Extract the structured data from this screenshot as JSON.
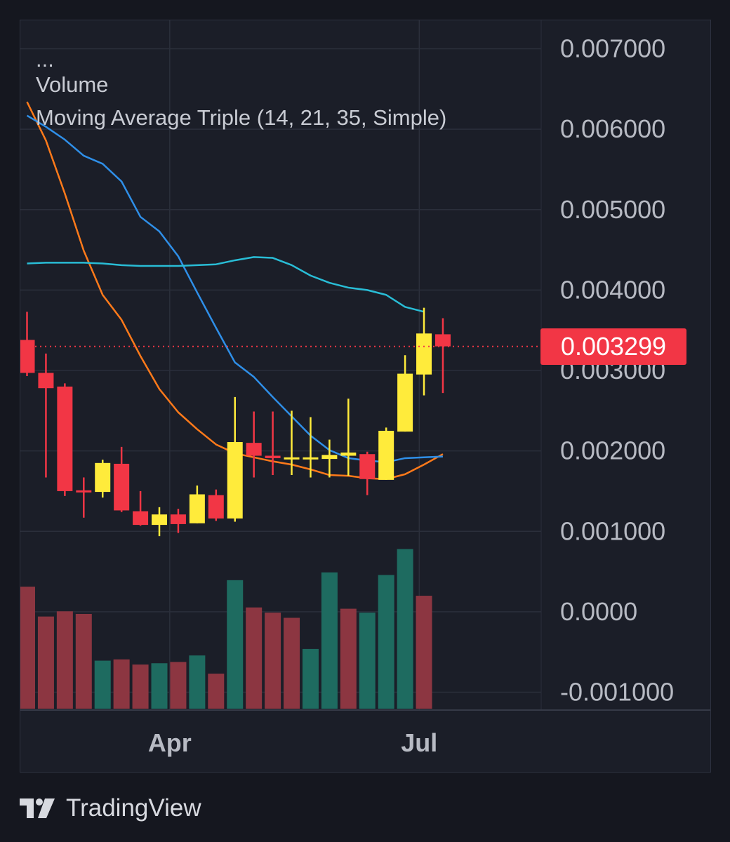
{
  "legend": {
    "collapsed": "...",
    "volume": "Volume",
    "ma_triple": "Moving Average Triple (14, 21, 35, Simple)"
  },
  "price_label": "0.003299",
  "brand": {
    "name": "TradingView",
    "logo_icon": "tradingview-logo-icon"
  },
  "colors": {
    "up": "#ffeb3b",
    "down": "#f23645",
    "vol_up": "#1e6b60",
    "vol_down": "#8c3641",
    "ma_fast": "#ff7a1a",
    "ma_mid": "#2f8fe8",
    "ma_slow": "#29bdd6",
    "grid": "#2b2f3b",
    "axis_text": "#b7bac3",
    "last_line": "#f23645"
  },
  "chart_data": {
    "type": "candlestick",
    "y_axis": {
      "ticks": [
        "0.007000",
        "0.006000",
        "0.005000",
        "0.004000",
        "0.003000",
        "0.002000",
        "0.001000",
        "0.0000",
        "-0.001000"
      ],
      "tick_values": [
        0.007,
        0.006,
        0.005,
        0.004,
        0.003,
        0.002,
        0.001,
        0.0,
        -0.001
      ],
      "range": [
        -0.00125,
        0.00735
      ]
    },
    "x_axis": {
      "labels": [
        {
          "text": "Apr",
          "index": 7.55
        },
        {
          "text": "Jul",
          "index": 20.75
        }
      ]
    },
    "last_price": 0.003299,
    "candles": [
      {
        "o": 0.00338,
        "h": 0.00373,
        "l": 0.00293,
        "c": 0.00297
      },
      {
        "o": 0.00297,
        "h": 0.00321,
        "l": 0.00167,
        "c": 0.00278
      },
      {
        "o": 0.0028,
        "h": 0.00284,
        "l": 0.00144,
        "c": 0.0015
      },
      {
        "o": 0.00151,
        "h": 0.00167,
        "l": 0.00117,
        "c": 0.0015
      },
      {
        "o": 0.00149,
        "h": 0.00189,
        "l": 0.00142,
        "c": 0.00185
      },
      {
        "o": 0.00184,
        "h": 0.00205,
        "l": 0.00124,
        "c": 0.00126
      },
      {
        "o": 0.00125,
        "h": 0.0015,
        "l": 0.00107,
        "c": 0.00108
      },
      {
        "o": 0.00108,
        "h": 0.0013,
        "l": 0.00094,
        "c": 0.00121
      },
      {
        "o": 0.00121,
        "h": 0.00128,
        "l": 0.00098,
        "c": 0.00109
      },
      {
        "o": 0.0011,
        "h": 0.00157,
        "l": 0.0011,
        "c": 0.00146
      },
      {
        "o": 0.00145,
        "h": 0.00152,
        "l": 0.00113,
        "c": 0.00116
      },
      {
        "o": 0.00116,
        "h": 0.00267,
        "l": 0.00112,
        "c": 0.00211
      },
      {
        "o": 0.0021,
        "h": 0.00249,
        "l": 0.00167,
        "c": 0.00194
      },
      {
        "o": 0.00194,
        "h": 0.00249,
        "l": 0.0017,
        "c": 0.00191
      },
      {
        "o": 0.00191,
        "h": 0.0025,
        "l": 0.0017,
        "c": 0.00192
      },
      {
        "o": 0.0019,
        "h": 0.00242,
        "l": 0.00167,
        "c": 0.00192
      },
      {
        "o": 0.0019,
        "h": 0.00214,
        "l": 0.00167,
        "c": 0.00195
      },
      {
        "o": 0.00194,
        "h": 0.00265,
        "l": 0.00169,
        "c": 0.00198
      },
      {
        "o": 0.00196,
        "h": 0.00199,
        "l": 0.00145,
        "c": 0.00165
      },
      {
        "o": 0.00164,
        "h": 0.00229,
        "l": 0.00164,
        "c": 0.00225
      },
      {
        "o": 0.00224,
        "h": 0.00319,
        "l": 0.00224,
        "c": 0.00296
      },
      {
        "o": 0.00295,
        "h": 0.00378,
        "l": 0.00269,
        "c": 0.00346
      },
      {
        "o": 0.00345,
        "h": 0.00365,
        "l": 0.00272,
        "c": 0.0033
      }
    ],
    "volume_ratios": [
      0.94,
      0.71,
      0.75,
      0.73,
      0.37,
      0.38,
      0.34,
      0.35,
      0.36,
      0.41,
      0.27,
      0.99,
      0.78,
      0.74,
      0.7,
      0.46,
      1.05,
      0.77,
      0.74,
      1.03,
      1.23,
      0.87
    ],
    "volume_up": [
      false,
      false,
      false,
      false,
      true,
      false,
      false,
      true,
      false,
      true,
      false,
      true,
      false,
      false,
      false,
      true,
      true,
      false,
      true,
      true,
      true,
      false
    ],
    "volume_start_index": 0,
    "moving_averages": [
      {
        "period": 14,
        "values": [
          0.00634,
          0.00586,
          0.0052,
          0.00449,
          0.00394,
          0.00363,
          0.00318,
          0.00277,
          0.00248,
          0.00227,
          0.00208,
          0.00197,
          0.00192,
          0.00187,
          0.00183,
          0.00177,
          0.0017,
          0.00169,
          0.00166,
          0.00165,
          0.00171,
          0.00183,
          0.00196
        ]
      },
      {
        "period": 21,
        "values": [
          0.00617,
          0.00603,
          0.00587,
          0.00567,
          0.00557,
          0.00535,
          0.00491,
          0.00473,
          0.00442,
          0.00397,
          0.00353,
          0.0031,
          0.00292,
          0.00267,
          0.00243,
          0.00219,
          0.00201,
          0.00191,
          0.00188,
          0.00186,
          0.00191,
          0.00192,
          0.00193
        ]
      },
      {
        "period": 35,
        "values": [
          0.00433,
          0.00434,
          0.00434,
          0.00434,
          0.00433,
          0.00431,
          0.0043,
          0.0043,
          0.0043,
          0.00431,
          0.00432,
          0.00437,
          0.00441,
          0.0044,
          0.00431,
          0.00418,
          0.00409,
          0.00403,
          0.004,
          0.00394,
          0.00379,
          0.00373
        ]
      }
    ]
  }
}
